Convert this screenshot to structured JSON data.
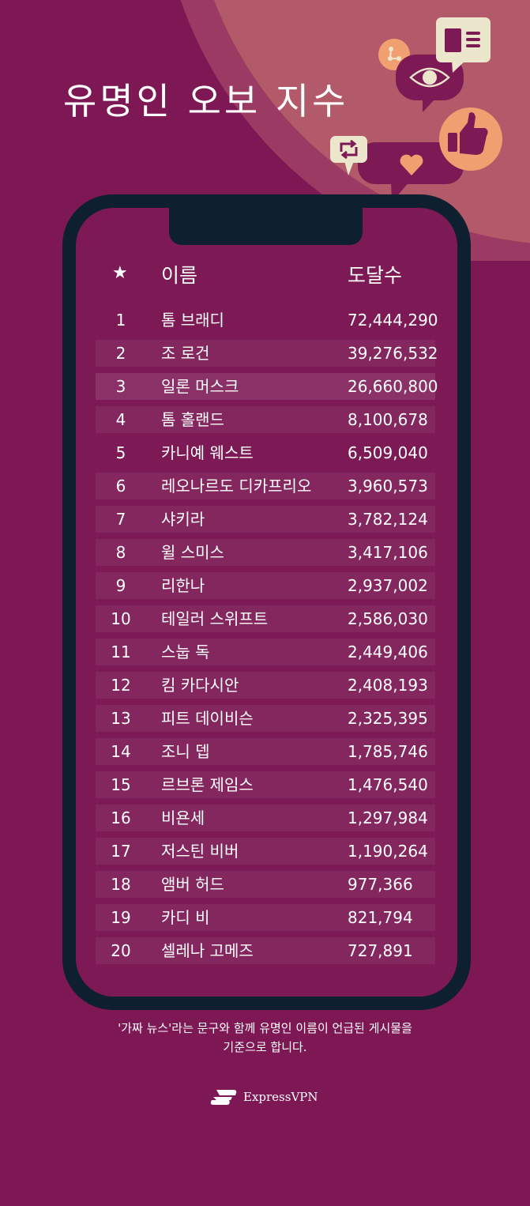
{
  "title": "유명인 오보 지수",
  "table": {
    "header": {
      "rank_icon": "star-icon",
      "name": "이름",
      "reach": "도달수"
    },
    "rows": [
      {
        "rank": "1",
        "name": "톰 브래디",
        "reach": "72,444,290"
      },
      {
        "rank": "2",
        "name": "조 로건",
        "reach": "39,276,532"
      },
      {
        "rank": "3",
        "name": "일론 머스크",
        "reach": "26,660,800"
      },
      {
        "rank": "4",
        "name": "톰 홀랜드",
        "reach": "8,100,678"
      },
      {
        "rank": "5",
        "name": "카니예 웨스트",
        "reach": "6,509,040"
      },
      {
        "rank": "6",
        "name": "레오나르도 디카프리오",
        "reach": "3,960,573"
      },
      {
        "rank": "7",
        "name": "샤키라",
        "reach": "3,782,124"
      },
      {
        "rank": "8",
        "name": "윌 스미스",
        "reach": "3,417,106"
      },
      {
        "rank": "9",
        "name": "리한나",
        "reach": "2,937,002"
      },
      {
        "rank": "10",
        "name": "테일러 스위프트",
        "reach": "2,586,030"
      },
      {
        "rank": "11",
        "name": "스눕 독",
        "reach": "2,449,406"
      },
      {
        "rank": "12",
        "name": "킴 카다시안",
        "reach": "2,408,193"
      },
      {
        "rank": "13",
        "name": "피트 데이비슨",
        "reach": "2,325,395"
      },
      {
        "rank": "14",
        "name": "조니 뎁",
        "reach": "1,785,746"
      },
      {
        "rank": "15",
        "name": "르브론 제임스",
        "reach": "1,476,540"
      },
      {
        "rank": "16",
        "name": "비욘세",
        "reach": "1,297,984"
      },
      {
        "rank": "17",
        "name": "저스틴 비버",
        "reach": "1,190,264"
      },
      {
        "rank": "18",
        "name": "앰버 허드",
        "reach": "977,366"
      },
      {
        "rank": "19",
        "name": "카디 비",
        "reach": "821,794"
      },
      {
        "rank": "20",
        "name": "셀레나 고메즈",
        "reach": "727,891"
      }
    ]
  },
  "footnote": {
    "line1": "'가짜 뉴스'라는 문구와 함께 유명인 이름이 언급된 게시물을",
    "line2": "기준으로 합니다."
  },
  "brand": {
    "name": "ExpressVPN"
  },
  "colors": {
    "background": "#7e1855",
    "phone": "#0e1f30",
    "accent_orange": "#f0a070",
    "cream": "#ece6cc"
  },
  "icons": [
    "share-icon",
    "eye-icon",
    "article-icon",
    "thumbs-up-icon",
    "repost-icon",
    "heart-icon"
  ]
}
